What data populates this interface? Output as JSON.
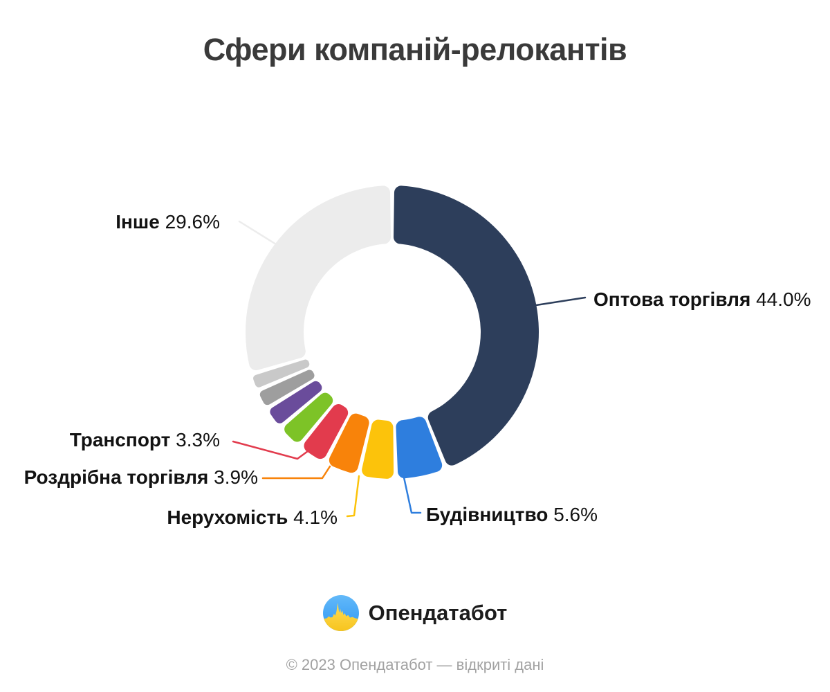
{
  "title": "Сфери компаній-релокантів",
  "chart_data": {
    "type": "pie",
    "variant": "donut",
    "title": "Сфери компаній-релокантів",
    "direction": "clockwise",
    "start_angle": "top",
    "legend_position": "callouts",
    "segments": [
      {
        "label": "Оптова торгівля",
        "value": 44.0,
        "pct_label": "44.0%",
        "color": "#2d3e5b",
        "labeled": true
      },
      {
        "label": "Будівництво",
        "value": 5.6,
        "pct_label": "5.6%",
        "color": "#2e7ede",
        "labeled": true
      },
      {
        "label": "Нерухомість",
        "value": 4.1,
        "pct_label": "4.1%",
        "color": "#fcc30b",
        "labeled": true
      },
      {
        "label": "Роздрібна торгівля",
        "value": 3.9,
        "pct_label": "3.9%",
        "color": "#f8830a",
        "labeled": true
      },
      {
        "label": "Транспорт",
        "value": 3.3,
        "pct_label": "3.3%",
        "color": "#e23b4d",
        "labeled": true
      },
      {
        "label": "",
        "value": 2.9,
        "pct_label": "",
        "color": "#7dc327",
        "labeled": false
      },
      {
        "label": "",
        "value": 2.5,
        "pct_label": "",
        "color": "#6a4c9b",
        "labeled": false
      },
      {
        "label": "",
        "value": 2.2,
        "pct_label": "",
        "color": "#9e9e9e",
        "labeled": false
      },
      {
        "label": "",
        "value": 1.9,
        "pct_label": "",
        "color": "#c9c9c9",
        "labeled": false
      },
      {
        "label": "Інше",
        "value": 29.6,
        "pct_label": "29.6%",
        "color": "#ececec",
        "labeled": true
      }
    ]
  },
  "footer": {
    "logo_text": "Опендатабот",
    "copyright": "© 2023 Опендатабот — відкриті дані"
  },
  "colors": {
    "title_text": "#3a3a3a",
    "label_text": "#121212",
    "copyright_text": "#a2a2a2",
    "logo_blue": "#3fa2f7",
    "logo_yellow": "#ffd84d"
  }
}
